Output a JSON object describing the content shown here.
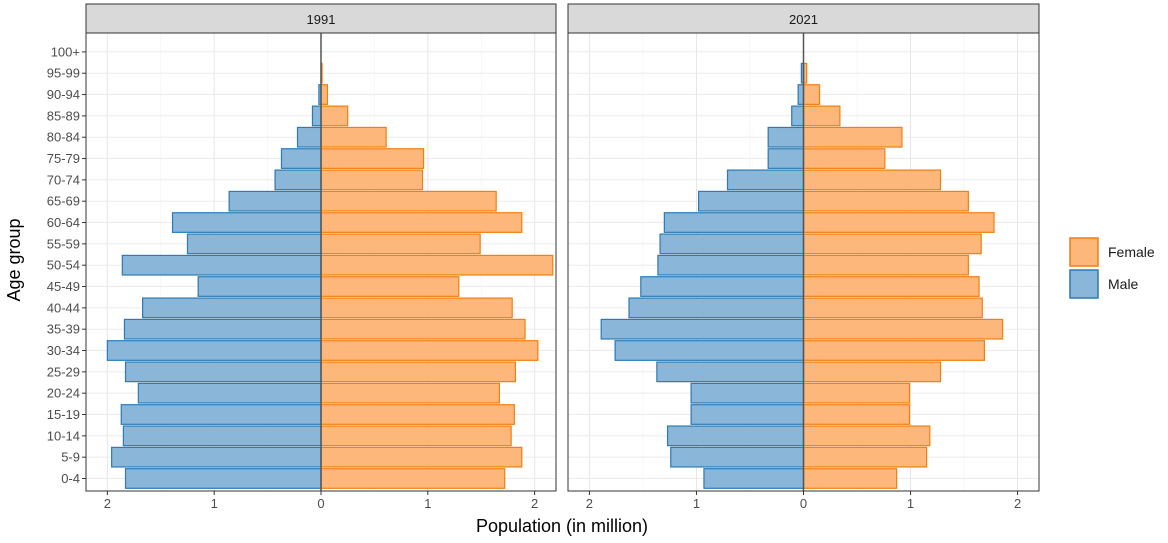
{
  "chart_data": {
    "type": "bar",
    "orientation": "horizontal",
    "kind": "population-pyramid",
    "xlabel": "Population (in million)",
    "ylabel": "Age group",
    "xlim": [
      -2.2,
      2.2
    ],
    "x_ticks": [
      -2,
      -1,
      0,
      1,
      2
    ],
    "x_tick_labels": [
      "2",
      "1",
      "0",
      "1",
      "2"
    ],
    "categories": [
      "0-4",
      "5-9",
      "10-14",
      "15-19",
      "20-24",
      "25-29",
      "30-34",
      "35-39",
      "40-44",
      "45-49",
      "50-54",
      "55-59",
      "60-64",
      "65-69",
      "70-74",
      "75-79",
      "80-84",
      "85-89",
      "90-94",
      "95-99",
      "100+"
    ],
    "legend": {
      "position": "right",
      "items": [
        {
          "label": "Female",
          "fill": "#fdb77a",
          "stroke": "#f07f12"
        },
        {
          "label": "Male",
          "fill": "#8ab6d9",
          "stroke": "#2b7bb4"
        }
      ]
    },
    "grid": true,
    "panels": [
      {
        "title": "1991",
        "series": [
          {
            "name": "Female",
            "values": [
              1.72,
              1.88,
              1.78,
              1.81,
              1.67,
              1.82,
              2.03,
              1.91,
              1.79,
              1.29,
              2.17,
              1.49,
              1.88,
              1.64,
              0.95,
              0.96,
              0.61,
              0.25,
              0.06,
              0.01,
              0.0
            ]
          },
          {
            "name": "Male",
            "values": [
              1.83,
              1.96,
              1.85,
              1.87,
              1.71,
              1.83,
              2.0,
              1.84,
              1.67,
              1.15,
              1.86,
              1.25,
              1.39,
              0.86,
              0.43,
              0.37,
              0.22,
              0.08,
              0.02,
              0.0,
              0.0
            ]
          }
        ]
      },
      {
        "title": "2021",
        "series": [
          {
            "name": "Female",
            "values": [
              0.87,
              1.15,
              1.18,
              0.99,
              0.99,
              1.28,
              1.69,
              1.86,
              1.67,
              1.64,
              1.54,
              1.66,
              1.78,
              1.54,
              1.28,
              0.76,
              0.92,
              0.34,
              0.15,
              0.03,
              0.0
            ]
          },
          {
            "name": "Male",
            "values": [
              0.93,
              1.24,
              1.27,
              1.05,
              1.05,
              1.37,
              1.76,
              1.89,
              1.63,
              1.52,
              1.36,
              1.34,
              1.3,
              0.98,
              0.71,
              0.33,
              0.33,
              0.11,
              0.05,
              0.02,
              0.0
            ]
          }
        ]
      }
    ]
  }
}
